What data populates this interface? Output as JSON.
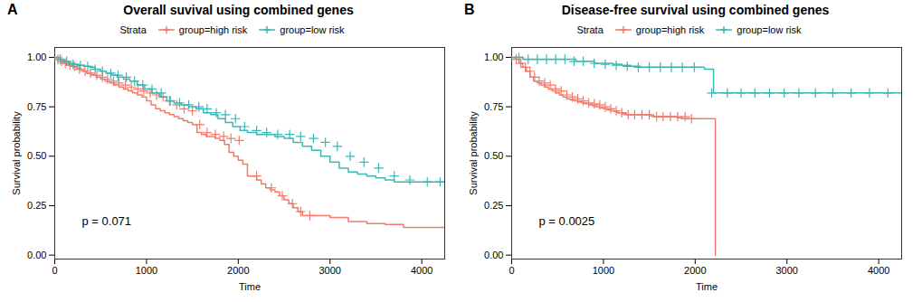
{
  "chart_data": [
    {
      "type": "step",
      "panel_label": "A",
      "title": "Overall suvival using combined genes",
      "annotation": "p = 0.071",
      "xlabel": "Time",
      "ylabel": "Survival probability",
      "xlim": [
        0,
        4250
      ],
      "ylim": [
        -0.02,
        1.05
      ],
      "xticks": [
        0,
        1000,
        2000,
        3000,
        4000
      ],
      "yticks": [
        {
          "value": 0.0,
          "label": "0.00"
        },
        0.25,
        {
          "value": 0.5,
          "label": "0.50"
        },
        0.75,
        {
          "value": 1.0,
          "label": "1.00"
        }
      ],
      "legend": "top",
      "legend_title": "Strata",
      "series": [
        {
          "name": "group=high risk",
          "color": "#F07B6B",
          "marker": "+",
          "x": [
            0,
            30,
            60,
            90,
            120,
            150,
            180,
            210,
            240,
            270,
            310,
            350,
            400,
            450,
            500,
            550,
            600,
            650,
            700,
            750,
            800,
            850,
            900,
            950,
            1000,
            1050,
            1100,
            1150,
            1200,
            1250,
            1300,
            1350,
            1400,
            1450,
            1500,
            1550,
            1600,
            1650,
            1700,
            1750,
            1800,
            1850,
            1900,
            1950,
            2000,
            2050,
            2100,
            2200,
            2250,
            2300,
            2350,
            2400,
            2450,
            2500,
            2550,
            2600,
            2650,
            2700,
            2800,
            3000,
            3100,
            3200,
            3400,
            3600,
            3800,
            4100,
            4250
          ],
          "values": [
            1.0,
            0.99,
            0.98,
            0.97,
            0.965,
            0.96,
            0.955,
            0.95,
            0.945,
            0.94,
            0.93,
            0.92,
            0.91,
            0.9,
            0.89,
            0.88,
            0.87,
            0.86,
            0.85,
            0.84,
            0.83,
            0.82,
            0.81,
            0.8,
            0.78,
            0.76,
            0.74,
            0.73,
            0.72,
            0.71,
            0.7,
            0.69,
            0.68,
            0.67,
            0.66,
            0.62,
            0.61,
            0.6,
            0.6,
            0.59,
            0.58,
            0.56,
            0.52,
            0.5,
            0.48,
            0.46,
            0.4,
            0.38,
            0.36,
            0.34,
            0.33,
            0.32,
            0.3,
            0.28,
            0.26,
            0.24,
            0.22,
            0.2,
            0.2,
            0.19,
            0.19,
            0.17,
            0.16,
            0.155,
            0.14,
            0.14,
            0.14
          ],
          "censor_x": [
            35,
            75,
            115,
            165,
            215,
            270,
            330,
            390,
            460,
            520,
            575,
            640,
            700,
            770,
            835,
            905,
            970,
            1040,
            1110,
            1180,
            1250,
            1330,
            1410,
            1500,
            1580,
            1660,
            1750,
            1840,
            1920,
            2010,
            2200,
            2360,
            2480,
            2590,
            2680,
            2780
          ],
          "censor_values": [
            0.99,
            0.98,
            0.97,
            0.96,
            0.955,
            0.94,
            0.93,
            0.92,
            0.91,
            0.9,
            0.89,
            0.88,
            0.87,
            0.86,
            0.85,
            0.84,
            0.83,
            0.82,
            0.81,
            0.8,
            0.78,
            0.76,
            0.74,
            0.73,
            0.66,
            0.62,
            0.61,
            0.6,
            0.59,
            0.58,
            0.4,
            0.34,
            0.3,
            0.26,
            0.22,
            0.2
          ]
        },
        {
          "name": "group=low risk",
          "color": "#3BB8B4",
          "marker": "+",
          "x": [
            0,
            50,
            100,
            150,
            200,
            260,
            320,
            380,
            440,
            500,
            560,
            620,
            680,
            750,
            820,
            900,
            980,
            1060,
            1140,
            1220,
            1300,
            1380,
            1460,
            1540,
            1620,
            1700,
            1780,
            1860,
            1940,
            2020,
            2100,
            2200,
            2300,
            2400,
            2500,
            2600,
            2700,
            2800,
            2900,
            3000,
            3100,
            3200,
            3300,
            3400,
            3500,
            3600,
            3700,
            3800,
            3900,
            4000,
            4100,
            4200,
            4250
          ],
          "values": [
            1.0,
            0.99,
            0.98,
            0.97,
            0.965,
            0.96,
            0.955,
            0.95,
            0.94,
            0.93,
            0.92,
            0.91,
            0.9,
            0.89,
            0.88,
            0.86,
            0.84,
            0.82,
            0.8,
            0.78,
            0.77,
            0.76,
            0.75,
            0.74,
            0.72,
            0.71,
            0.69,
            0.67,
            0.65,
            0.63,
            0.62,
            0.61,
            0.61,
            0.6,
            0.59,
            0.57,
            0.55,
            0.53,
            0.5,
            0.47,
            0.44,
            0.42,
            0.41,
            0.4,
            0.39,
            0.38,
            0.37,
            0.37,
            0.37,
            0.37,
            0.37,
            0.37,
            0.37
          ],
          "censor_x": [
            60,
            130,
            200,
            280,
            360,
            440,
            520,
            610,
            690,
            780,
            870,
            960,
            1060,
            1160,
            1260,
            1360,
            1460,
            1570,
            1660,
            1760,
            1860,
            1970,
            2070,
            2200,
            2310,
            2430,
            2560,
            2680,
            2820,
            2950,
            3080,
            3220,
            3370,
            3530,
            3700,
            3870,
            4060,
            4200
          ],
          "censor_values": [
            0.99,
            0.98,
            0.965,
            0.96,
            0.955,
            0.94,
            0.93,
            0.92,
            0.91,
            0.9,
            0.88,
            0.86,
            0.84,
            0.82,
            0.78,
            0.77,
            0.76,
            0.75,
            0.74,
            0.72,
            0.71,
            0.69,
            0.65,
            0.63,
            0.62,
            0.61,
            0.61,
            0.6,
            0.59,
            0.57,
            0.55,
            0.5,
            0.47,
            0.44,
            0.4,
            0.38,
            0.37,
            0.37
          ]
        }
      ]
    },
    {
      "type": "step",
      "panel_label": "B",
      "title": "Disease-free survival using combined genes",
      "annotation": "p = 0.0025",
      "xlabel": "Time",
      "ylabel": "Survival probability",
      "xlim": [
        0,
        4250
      ],
      "ylim": [
        -0.02,
        1.05
      ],
      "xticks": [
        0,
        1000,
        2000,
        3000,
        4000
      ],
      "yticks": [
        {
          "value": 0.0,
          "label": "0.00"
        },
        0.25,
        {
          "value": 0.5,
          "label": "0.50"
        },
        0.75,
        {
          "value": 1.0,
          "label": "1.00"
        }
      ],
      "legend": "top",
      "legend_title": "Strata",
      "series": [
        {
          "name": "group=high risk",
          "color": "#F07B6B",
          "marker": "+",
          "x": [
            0,
            40,
            80,
            120,
            160,
            200,
            240,
            280,
            320,
            360,
            400,
            440,
            480,
            520,
            560,
            600,
            640,
            680,
            720,
            760,
            800,
            840,
            880,
            920,
            960,
            1000,
            1040,
            1080,
            1120,
            1160,
            1200,
            1250,
            1300,
            1350,
            1400,
            1450,
            1500,
            1550,
            1600,
            1650,
            1700,
            1750,
            1800,
            1850,
            1900,
            1950,
            2000,
            2050,
            2100,
            2150,
            2200,
            2220
          ],
          "values": [
            1.0,
            0.99,
            0.97,
            0.95,
            0.93,
            0.9,
            0.88,
            0.87,
            0.86,
            0.85,
            0.84,
            0.83,
            0.82,
            0.81,
            0.8,
            0.79,
            0.785,
            0.78,
            0.775,
            0.77,
            0.765,
            0.76,
            0.755,
            0.75,
            0.745,
            0.74,
            0.735,
            0.73,
            0.725,
            0.72,
            0.715,
            0.71,
            0.71,
            0.71,
            0.71,
            0.71,
            0.705,
            0.7,
            0.7,
            0.7,
            0.7,
            0.7,
            0.695,
            0.69,
            0.69,
            0.69,
            0.69,
            0.69,
            0.69,
            0.69,
            0.69,
            0.0
          ],
          "censor_x": [
            50,
            100,
            150,
            200,
            250,
            300,
            360,
            420,
            480,
            540,
            600,
            660,
            720,
            780,
            840,
            900,
            960,
            1020,
            1080,
            1140,
            1200,
            1270,
            1340,
            1420,
            1500,
            1580,
            1650,
            1730,
            1810,
            1890,
            1960
          ],
          "censor_values": [
            0.99,
            0.97,
            0.95,
            0.93,
            0.9,
            0.88,
            0.87,
            0.86,
            0.84,
            0.83,
            0.81,
            0.8,
            0.79,
            0.78,
            0.77,
            0.765,
            0.76,
            0.75,
            0.74,
            0.73,
            0.72,
            0.71,
            0.71,
            0.71,
            0.71,
            0.7,
            0.7,
            0.7,
            0.7,
            0.7,
            0.69
          ]
        },
        {
          "name": "group=low risk",
          "color": "#3BB8B4",
          "marker": "+",
          "x": [
            0,
            60,
            120,
            200,
            300,
            400,
            500,
            600,
            700,
            800,
            900,
            1000,
            1100,
            1200,
            1300,
            1400,
            1500,
            1600,
            1700,
            1800,
            1900,
            2000,
            2100,
            2200,
            2300,
            2400,
            2500,
            2600,
            2700,
            2800,
            2900,
            3000,
            3100,
            3200,
            3300,
            3400,
            3600,
            3800,
            4000,
            4200,
            4250
          ],
          "values": [
            1.0,
            1.0,
            0.99,
            0.99,
            0.99,
            0.99,
            0.99,
            0.99,
            0.98,
            0.98,
            0.97,
            0.97,
            0.965,
            0.96,
            0.955,
            0.95,
            0.95,
            0.95,
            0.95,
            0.95,
            0.95,
            0.95,
            0.94,
            0.82,
            0.82,
            0.82,
            0.82,
            0.82,
            0.82,
            0.82,
            0.82,
            0.82,
            0.82,
            0.82,
            0.82,
            0.82,
            0.82,
            0.82,
            0.82,
            0.82,
            0.82
          ],
          "censor_x": [
            80,
            180,
            280,
            380,
            480,
            580,
            680,
            780,
            900,
            1020,
            1140,
            1260,
            1380,
            1500,
            1620,
            1740,
            1860,
            1990,
            2180,
            2350,
            2500,
            2650,
            2810,
            2970,
            3130,
            3310,
            3500,
            3700,
            3900,
            4100
          ],
          "censor_values": [
            1.0,
            0.99,
            0.99,
            0.99,
            0.99,
            0.99,
            0.98,
            0.98,
            0.97,
            0.965,
            0.96,
            0.955,
            0.95,
            0.95,
            0.95,
            0.95,
            0.95,
            0.95,
            0.82,
            0.82,
            0.82,
            0.82,
            0.82,
            0.82,
            0.82,
            0.82,
            0.82,
            0.82,
            0.82,
            0.82
          ]
        }
      ]
    }
  ]
}
